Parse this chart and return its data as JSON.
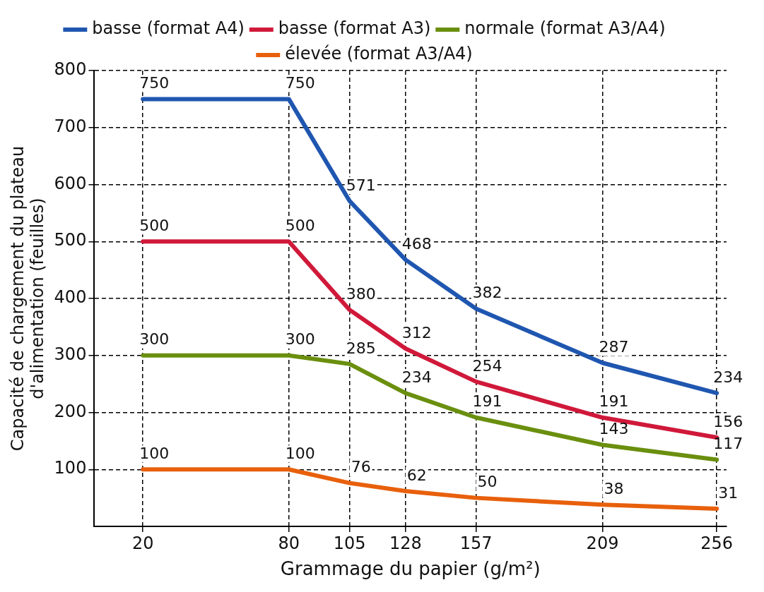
{
  "chart_data": {
    "type": "line",
    "xlabel": "Grammage du papier (g/m²)",
    "ylabel": "Capacité de chargement du plateau d'alimentation (feuilles)",
    "x": [
      20,
      80,
      105,
      128,
      157,
      209,
      256
    ],
    "series": [
      {
        "name": "basse (format A4)",
        "color": "#1f56b0",
        "values": [
          750,
          750,
          571,
          468,
          382,
          287,
          234
        ]
      },
      {
        "name": "basse (format A3)",
        "color": "#d0193a",
        "values": [
          500,
          500,
          380,
          312,
          254,
          191,
          156
        ]
      },
      {
        "name": "normale (format A3/A4)",
        "color": "#6a8f0e",
        "values": [
          300,
          300,
          285,
          234,
          191,
          143,
          117
        ]
      },
      {
        "name": "élevée (format A3/A4)",
        "color": "#e8600c",
        "values": [
          100,
          100,
          76,
          62,
          50,
          38,
          31
        ]
      }
    ],
    "xlim": [
      0,
      260
    ],
    "xticks": [
      20,
      80,
      105,
      128,
      157,
      209,
      256
    ],
    "ylim": [
      0,
      800
    ],
    "yticks": [
      100,
      200,
      300,
      400,
      500,
      600,
      700,
      800
    ],
    "grid": true,
    "line_style": "solid",
    "marker": "none",
    "legend": "top",
    "data_labels": true
  }
}
